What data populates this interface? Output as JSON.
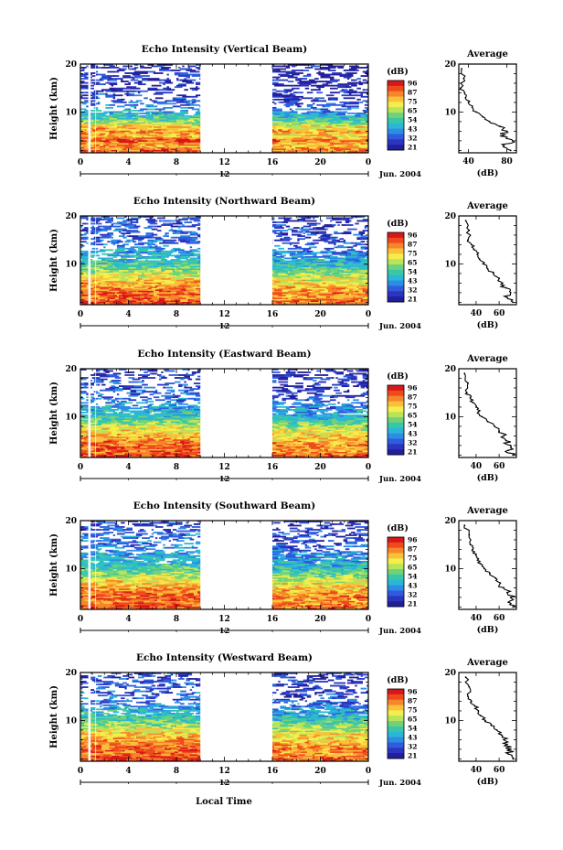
{
  "figure": {
    "date_label": "Jun. 2004",
    "xlabel": "Local Time",
    "colorbar_unit": "(dB)",
    "colorbar_ticks": [
      "96",
      "87",
      "75",
      "65",
      "54",
      "43",
      "32",
      "21"
    ],
    "colormap": [
      "#d81818",
      "#ef4a1e",
      "#f6862a",
      "#f9c13a",
      "#f5ee4a",
      "#b9e35a",
      "#6fd27a",
      "#38c7a8",
      "#2ab7d6",
      "#2d8de6",
      "#2f5cdc",
      "#2c35c0",
      "#221f9c"
    ],
    "time_ticks": [
      "0",
      "4",
      "8",
      "12",
      "16",
      "20",
      "0"
    ],
    "sub_tick_label": "12",
    "ytick_labels": [
      "10",
      "20"
    ],
    "ylabel": "Height (km)",
    "avg_title": "Average",
    "avg_xlabel": "(dB)"
  },
  "chart_data": [
    {
      "type": "heatmap",
      "title": "Echo Intensity (Vertical Beam)",
      "x": "local time (h)",
      "xlim": [
        0,
        24
      ],
      "y": "height (km)",
      "ylim": [
        1.5,
        20
      ],
      "gaps_hours": [
        [
          0.65,
          0.85
        ],
        [
          1.25,
          1.3
        ],
        [
          10.0,
          16.0
        ]
      ],
      "profile": {
        "title": "Average",
        "xlabel": "(dB)",
        "xticks": [
          40,
          80
        ],
        "xlim": [
          30,
          90
        ],
        "height_km": [
          19,
          17,
          15,
          14,
          13,
          12,
          11,
          10,
          9,
          8,
          7,
          6,
          5,
          4,
          3,
          2
        ],
        "db": [
          33,
          35,
          32,
          36,
          37,
          40,
          44,
          48,
          55,
          62,
          73,
          80,
          74,
          86,
          77,
          84
        ]
      }
    },
    {
      "type": "heatmap",
      "title": "Echo Intensity (Northward Beam)",
      "x": "local time (h)",
      "xlim": [
        0,
        24
      ],
      "y": "height (km)",
      "ylim": [
        1.5,
        20
      ],
      "gaps_hours": [
        [
          0.65,
          0.85
        ],
        [
          1.25,
          1.3
        ],
        [
          10.0,
          16.0
        ]
      ],
      "profile": {
        "title": "Average",
        "xlabel": "(dB)",
        "xticks": [
          40,
          60
        ],
        "xlim": [
          25,
          75
        ],
        "height_km": [
          19,
          17,
          15,
          14,
          13,
          12,
          11,
          10,
          9,
          8,
          7,
          6,
          5,
          4,
          3,
          2
        ],
        "db": [
          31,
          34,
          33,
          36,
          38,
          41,
          43,
          46,
          50,
          55,
          60,
          63,
          66,
          70,
          67,
          72
        ]
      }
    },
    {
      "type": "heatmap",
      "title": "Echo Intensity (Eastward Beam)",
      "x": "local time (h)",
      "xlim": [
        0,
        24
      ],
      "y": "height (km)",
      "ylim": [
        1.5,
        20
      ],
      "gaps_hours": [
        [
          0.65,
          0.85
        ],
        [
          1.25,
          1.3
        ],
        [
          10.0,
          16.0
        ]
      ],
      "profile": {
        "title": "Average",
        "xlabel": "(dB)",
        "xticks": [
          40,
          60
        ],
        "xlim": [
          25,
          75
        ],
        "height_km": [
          19,
          17,
          15,
          14,
          13,
          12,
          11,
          10,
          9,
          8,
          7,
          6,
          5,
          4,
          3,
          2
        ],
        "db": [
          30,
          33,
          32,
          35,
          37,
          40,
          42,
          45,
          50,
          56,
          60,
          64,
          66,
          70,
          68,
          72
        ]
      }
    },
    {
      "type": "heatmap",
      "title": "Echo Intensity (Southward Beam)",
      "x": "local time (h)",
      "xlim": [
        0,
        24
      ],
      "y": "height (km)",
      "ylim": [
        1.5,
        20
      ],
      "gaps_hours": [
        [
          0.65,
          0.85
        ],
        [
          1.25,
          1.3
        ],
        [
          10.0,
          16.0
        ]
      ],
      "profile": {
        "title": "Average",
        "xlabel": "(dB)",
        "xticks": [
          40,
          60
        ],
        "xlim": [
          25,
          75
        ],
        "height_km": [
          19,
          17,
          15,
          14,
          13,
          12,
          11,
          10,
          9,
          8,
          7,
          6,
          5,
          4,
          3,
          2
        ],
        "db": [
          30,
          34,
          35,
          37,
          40,
          42,
          44,
          47,
          52,
          57,
          61,
          64,
          67,
          70,
          68,
          72
        ]
      }
    },
    {
      "type": "heatmap",
      "title": "Echo Intensity (Westward Beam)",
      "x": "local time (h)",
      "xlim": [
        0,
        24
      ],
      "y": "height (km)",
      "ylim": [
        1.5,
        20
      ],
      "gaps_hours": [
        [
          0.65,
          0.85
        ],
        [
          1.25,
          1.3
        ],
        [
          10.0,
          16.0
        ]
      ],
      "profile": {
        "title": "Average",
        "xlabel": "(dB)",
        "xticks": [
          40,
          60
        ],
        "xlim": [
          25,
          75
        ],
        "height_km": [
          19,
          17,
          15,
          14,
          13,
          12,
          11,
          10,
          9,
          8,
          7,
          6,
          5,
          4,
          3,
          2
        ],
        "db": [
          31,
          34,
          33,
          36,
          39,
          42,
          44,
          48,
          53,
          58,
          62,
          64,
          67,
          70,
          68,
          72
        ]
      }
    }
  ]
}
